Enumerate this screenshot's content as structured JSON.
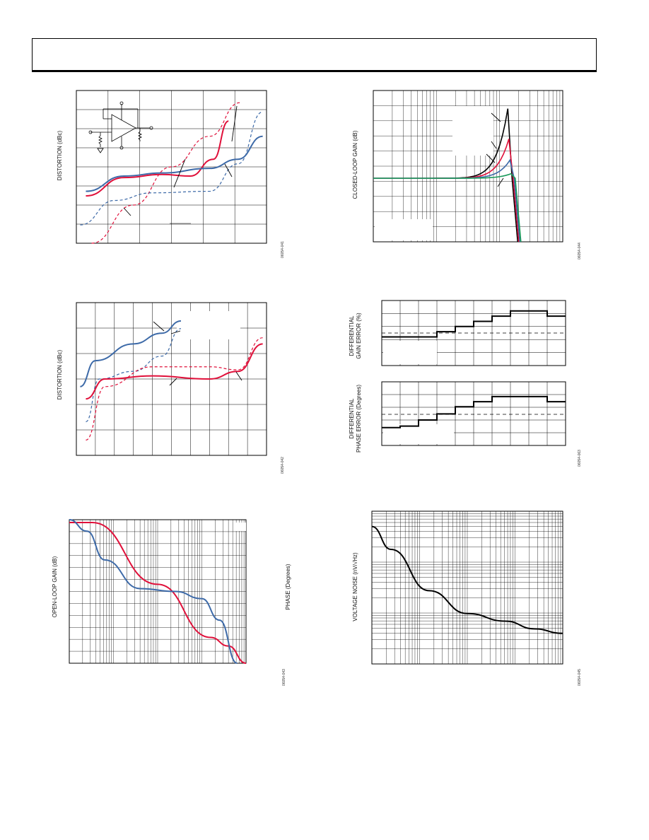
{
  "header": {},
  "figures": [
    {
      "id": "fig1",
      "ylabel": "DISTORTION (dBc)",
      "code": "06054-041"
    },
    {
      "id": "fig2",
      "ylabel": "CLOSED-LOOP GAIN (dB)",
      "code": "06054-044"
    },
    {
      "id": "fig3",
      "ylabel": "DISTORTION (dBc)",
      "code": "06054-042"
    },
    {
      "id": "fig4",
      "ylabel_gain": "DIFFERENTIAL\nGAIN ERROR (%)",
      "ylabel_phase": "DIFFERENTIAL\nPHASE ERROR (Degrees)",
      "code": "06054-063"
    },
    {
      "id": "fig5",
      "ylabel": "OPEN-LOOP GAIN (dB)",
      "ylabel2": "PHASE (Degrees)",
      "code": "06054-043"
    },
    {
      "id": "fig6",
      "ylabel": "VOLTAGE NOISE (nV/√Hz)",
      "code": "06054-045"
    }
  ],
  "colors": {
    "red": "#e0103a",
    "blue": "#3d6aa8",
    "black": "#000000",
    "green": "#1a9a5a"
  },
  "chart_data": [
    {
      "type": "line",
      "grid": "linear 9x8",
      "series": [
        {
          "color": "red",
          "style": "solid",
          "x": [
            0.05,
            0.25,
            0.45,
            0.6,
            0.72,
            0.8
          ],
          "y": [
            0.31,
            0.43,
            0.45,
            0.44,
            0.55,
            0.8
          ]
        },
        {
          "color": "blue",
          "style": "solid",
          "x": [
            0.05,
            0.25,
            0.45,
            0.7,
            0.85,
            0.98
          ],
          "y": [
            0.34,
            0.44,
            0.46,
            0.49,
            0.55,
            0.7
          ]
        },
        {
          "color": "red",
          "style": "dashed",
          "x": [
            0.08,
            0.3,
            0.5,
            0.7,
            0.86
          ],
          "y": [
            0.0,
            0.25,
            0.5,
            0.7,
            0.92
          ]
        },
        {
          "color": "blue",
          "style": "dashed",
          "x": [
            0.02,
            0.2,
            0.4,
            0.7,
            0.85,
            0.98
          ],
          "y": [
            0.12,
            0.28,
            0.33,
            0.34,
            0.52,
            0.86
          ]
        }
      ]
    },
    {
      "type": "line",
      "grid": "log-x",
      "series": [
        {
          "color": "black",
          "peak": 0.88
        },
        {
          "color": "red",
          "peak": 0.68
        },
        {
          "color": "blue",
          "peak": 0.54
        },
        {
          "color": "green",
          "peak": 0.45
        }
      ]
    },
    {
      "type": "line",
      "grid": "linear 10x6",
      "series": [
        {
          "color": "blue",
          "style": "solid",
          "x": [
            0.02,
            0.1,
            0.3,
            0.45,
            0.55
          ],
          "y": [
            0.45,
            0.62,
            0.73,
            0.8,
            0.88
          ]
        },
        {
          "color": "blue",
          "style": "dashed",
          "x": [
            0.05,
            0.12,
            0.3,
            0.45,
            0.55
          ],
          "y": [
            0.22,
            0.5,
            0.55,
            0.65,
            0.83
          ]
        },
        {
          "color": "red",
          "style": "solid",
          "x": [
            0.05,
            0.15,
            0.4,
            0.7,
            0.85,
            0.98
          ],
          "y": [
            0.37,
            0.5,
            0.52,
            0.5,
            0.55,
            0.73
          ]
        },
        {
          "color": "red",
          "style": "dashed",
          "x": [
            0.05,
            0.15,
            0.4,
            0.7,
            0.85,
            0.98
          ],
          "y": [
            0.1,
            0.45,
            0.58,
            0.58,
            0.56,
            0.77
          ]
        }
      ]
    },
    {
      "type": "line",
      "step": true,
      "series": [
        {
          "name": "gain",
          "values": [
            0.55,
            0.55,
            0.55,
            0.65,
            0.75,
            0.85,
            0.95,
            1.05,
            1.05,
            0.95
          ]
        },
        {
          "name": "phase",
          "values": [
            0.35,
            0.38,
            0.5,
            0.62,
            0.76,
            0.86,
            0.96,
            0.96,
            0.96,
            0.86
          ]
        }
      ]
    },
    {
      "type": "line",
      "grid": "log-x",
      "series": [
        {
          "color": "red",
          "x": [
            0,
            0.13,
            0.5,
            0.8,
            0.9,
            1.0
          ],
          "y": [
            0.98,
            0.98,
            0.55,
            0.18,
            0.12,
            0.0
          ]
        },
        {
          "color": "blue",
          "x": [
            0,
            0.1,
            0.2,
            0.4,
            0.6,
            0.75,
            0.85,
            0.95
          ],
          "y": [
            1.0,
            0.92,
            0.72,
            0.52,
            0.5,
            0.45,
            0.3,
            0.0
          ]
        }
      ]
    },
    {
      "type": "line",
      "grid": "log-log",
      "series": [
        {
          "color": "black",
          "x": [
            0,
            0.1,
            0.3,
            0.5,
            0.7,
            0.85,
            1.0
          ],
          "y": [
            0.9,
            0.75,
            0.48,
            0.33,
            0.28,
            0.23,
            0.2
          ]
        }
      ]
    }
  ]
}
